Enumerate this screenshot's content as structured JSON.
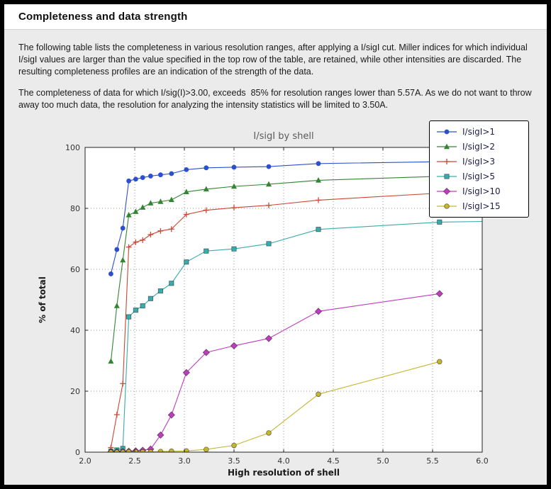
{
  "header": {
    "title": "Completeness and data strength"
  },
  "paragraphs": [
    "The following table lists the completeness in various resolution ranges, after applying a I/sigI cut. Miller indices for which individual I/sigI values are larger than the value specified in the top row of the table, are retained, while other intensities are discarded. The resulting completeness profiles are an indication of the strength of the data.",
    "The completeness of data for which I/sig(I)>3.00, exceeds  85% for resolution ranges lower than 5.57A. As we do not want to throw away too much data, the resolution for analyzing the intensity statistics will be limited to 3.50A."
  ],
  "chart_data": {
    "type": "line",
    "title": "I/sigI by shell",
    "xlabel": "High resolution of shell",
    "ylabel": "% of total",
    "xlim": [
      2.0,
      6.0
    ],
    "ylim": [
      0,
      100
    ],
    "xticks": [
      "2.0",
      "2.5",
      "3.0",
      "3.5",
      "4.0",
      "4.5",
      "5.0",
      "5.5",
      "6.0"
    ],
    "yticks": [
      "0",
      "20",
      "40",
      "60",
      "80",
      "100"
    ],
    "grid": "dotted",
    "legend_position": "upper-right",
    "x": [
      2.26,
      2.32,
      2.38,
      2.44,
      2.51,
      2.58,
      2.66,
      2.76,
      2.87,
      3.02,
      3.22,
      3.5,
      3.85,
      4.35,
      5.57
    ],
    "series": [
      {
        "name": "I/sigI>1",
        "color": "#2c50cc",
        "marker": "circle",
        "values": [
          58.5,
          66.5,
          73.5,
          89.0,
          89.6,
          90.1,
          90.6,
          91.0,
          91.4,
          92.7,
          93.3,
          93.5,
          93.7,
          94.7,
          95.3
        ],
        "edge_value": 95.8
      },
      {
        "name": "I/sigI>2",
        "color": "#338433",
        "marker": "triangle",
        "values": [
          29.8,
          48.0,
          63.0,
          77.8,
          78.9,
          80.3,
          81.7,
          82.2,
          82.8,
          85.4,
          86.3,
          87.2,
          87.9,
          89.2,
          90.5
        ],
        "edge_value": 90.9
      },
      {
        "name": "I/sigI>3",
        "color": "#cc4633",
        "marker": "plus",
        "values": [
          1.5,
          12.3,
          22.5,
          67.3,
          68.9,
          69.6,
          71.4,
          72.6,
          73.2,
          78.0,
          79.4,
          80.2,
          81.0,
          82.7,
          85.0
        ],
        "edge_value": 85.5
      },
      {
        "name": "I/sigI>5",
        "color": "#3aabab",
        "marker": "square",
        "values": [
          0.3,
          0.7,
          1.2,
          44.4,
          46.6,
          48.0,
          50.4,
          52.9,
          55.4,
          62.4,
          66.0,
          66.7,
          68.4,
          73.1,
          75.5
        ],
        "edge_value": 75.7
      },
      {
        "name": "I/sigI>10",
        "color": "#bd3dbd",
        "marker": "diamond",
        "values": [
          0.1,
          0.1,
          0.2,
          0.3,
          0.4,
          0.6,
          1.0,
          5.6,
          12.2,
          26.1,
          32.7,
          34.9,
          37.3,
          46.2,
          52.0
        ]
      },
      {
        "name": "I/sigI>15",
        "color": "#c4b633",
        "marker": "circle-edge",
        "values": [
          0.0,
          0.0,
          0.0,
          0.1,
          0.1,
          0.1,
          0.1,
          0.2,
          0.3,
          0.4,
          0.9,
          2.2,
          6.3,
          19.0,
          29.7
        ]
      }
    ]
  }
}
